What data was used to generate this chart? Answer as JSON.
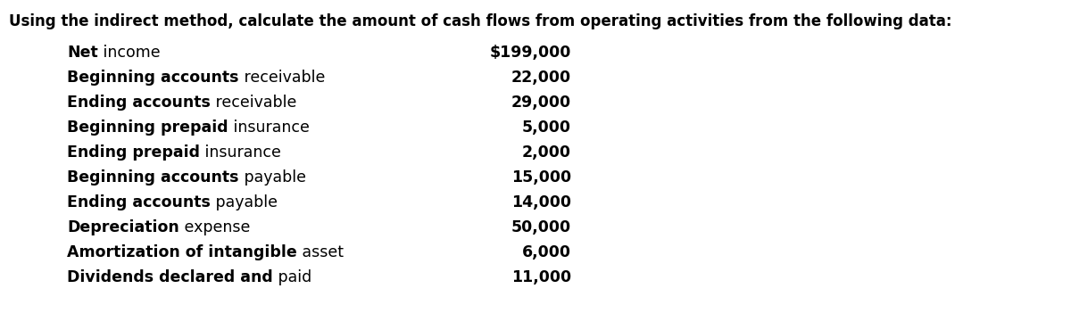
{
  "title": "Using the indirect method, calculate the amount of cash flows from operating activities from the following data:",
  "rows": [
    {
      "label_bold": "Net",
      "label_regular": " income",
      "value": "$199,000"
    },
    {
      "label_bold": "Beginning accounts",
      "label_regular": " receivable",
      "value": "22,000"
    },
    {
      "label_bold": "Ending accounts",
      "label_regular": " receivable",
      "value": "29,000"
    },
    {
      "label_bold": "Beginning prepaid",
      "label_regular": " insurance",
      "value": "5,000"
    },
    {
      "label_bold": "Ending prepaid",
      "label_regular": " insurance",
      "value": "2,000"
    },
    {
      "label_bold": "Beginning accounts",
      "label_regular": " payable",
      "value": "15,000"
    },
    {
      "label_bold": "Ending accounts",
      "label_regular": " payable",
      "value": "14,000"
    },
    {
      "label_bold": "Depreciation",
      "label_regular": " expense",
      "value": "50,000"
    },
    {
      "label_bold": "Amortization of intangible",
      "label_regular": " asset",
      "value": "6,000"
    },
    {
      "label_bold": "Dividends declared and",
      "label_regular": " paid",
      "value": "11,000"
    }
  ],
  "title_fontsize": 12.0,
  "row_fontsize": 12.5,
  "background_color": "#ffffff",
  "text_color": "#000000"
}
